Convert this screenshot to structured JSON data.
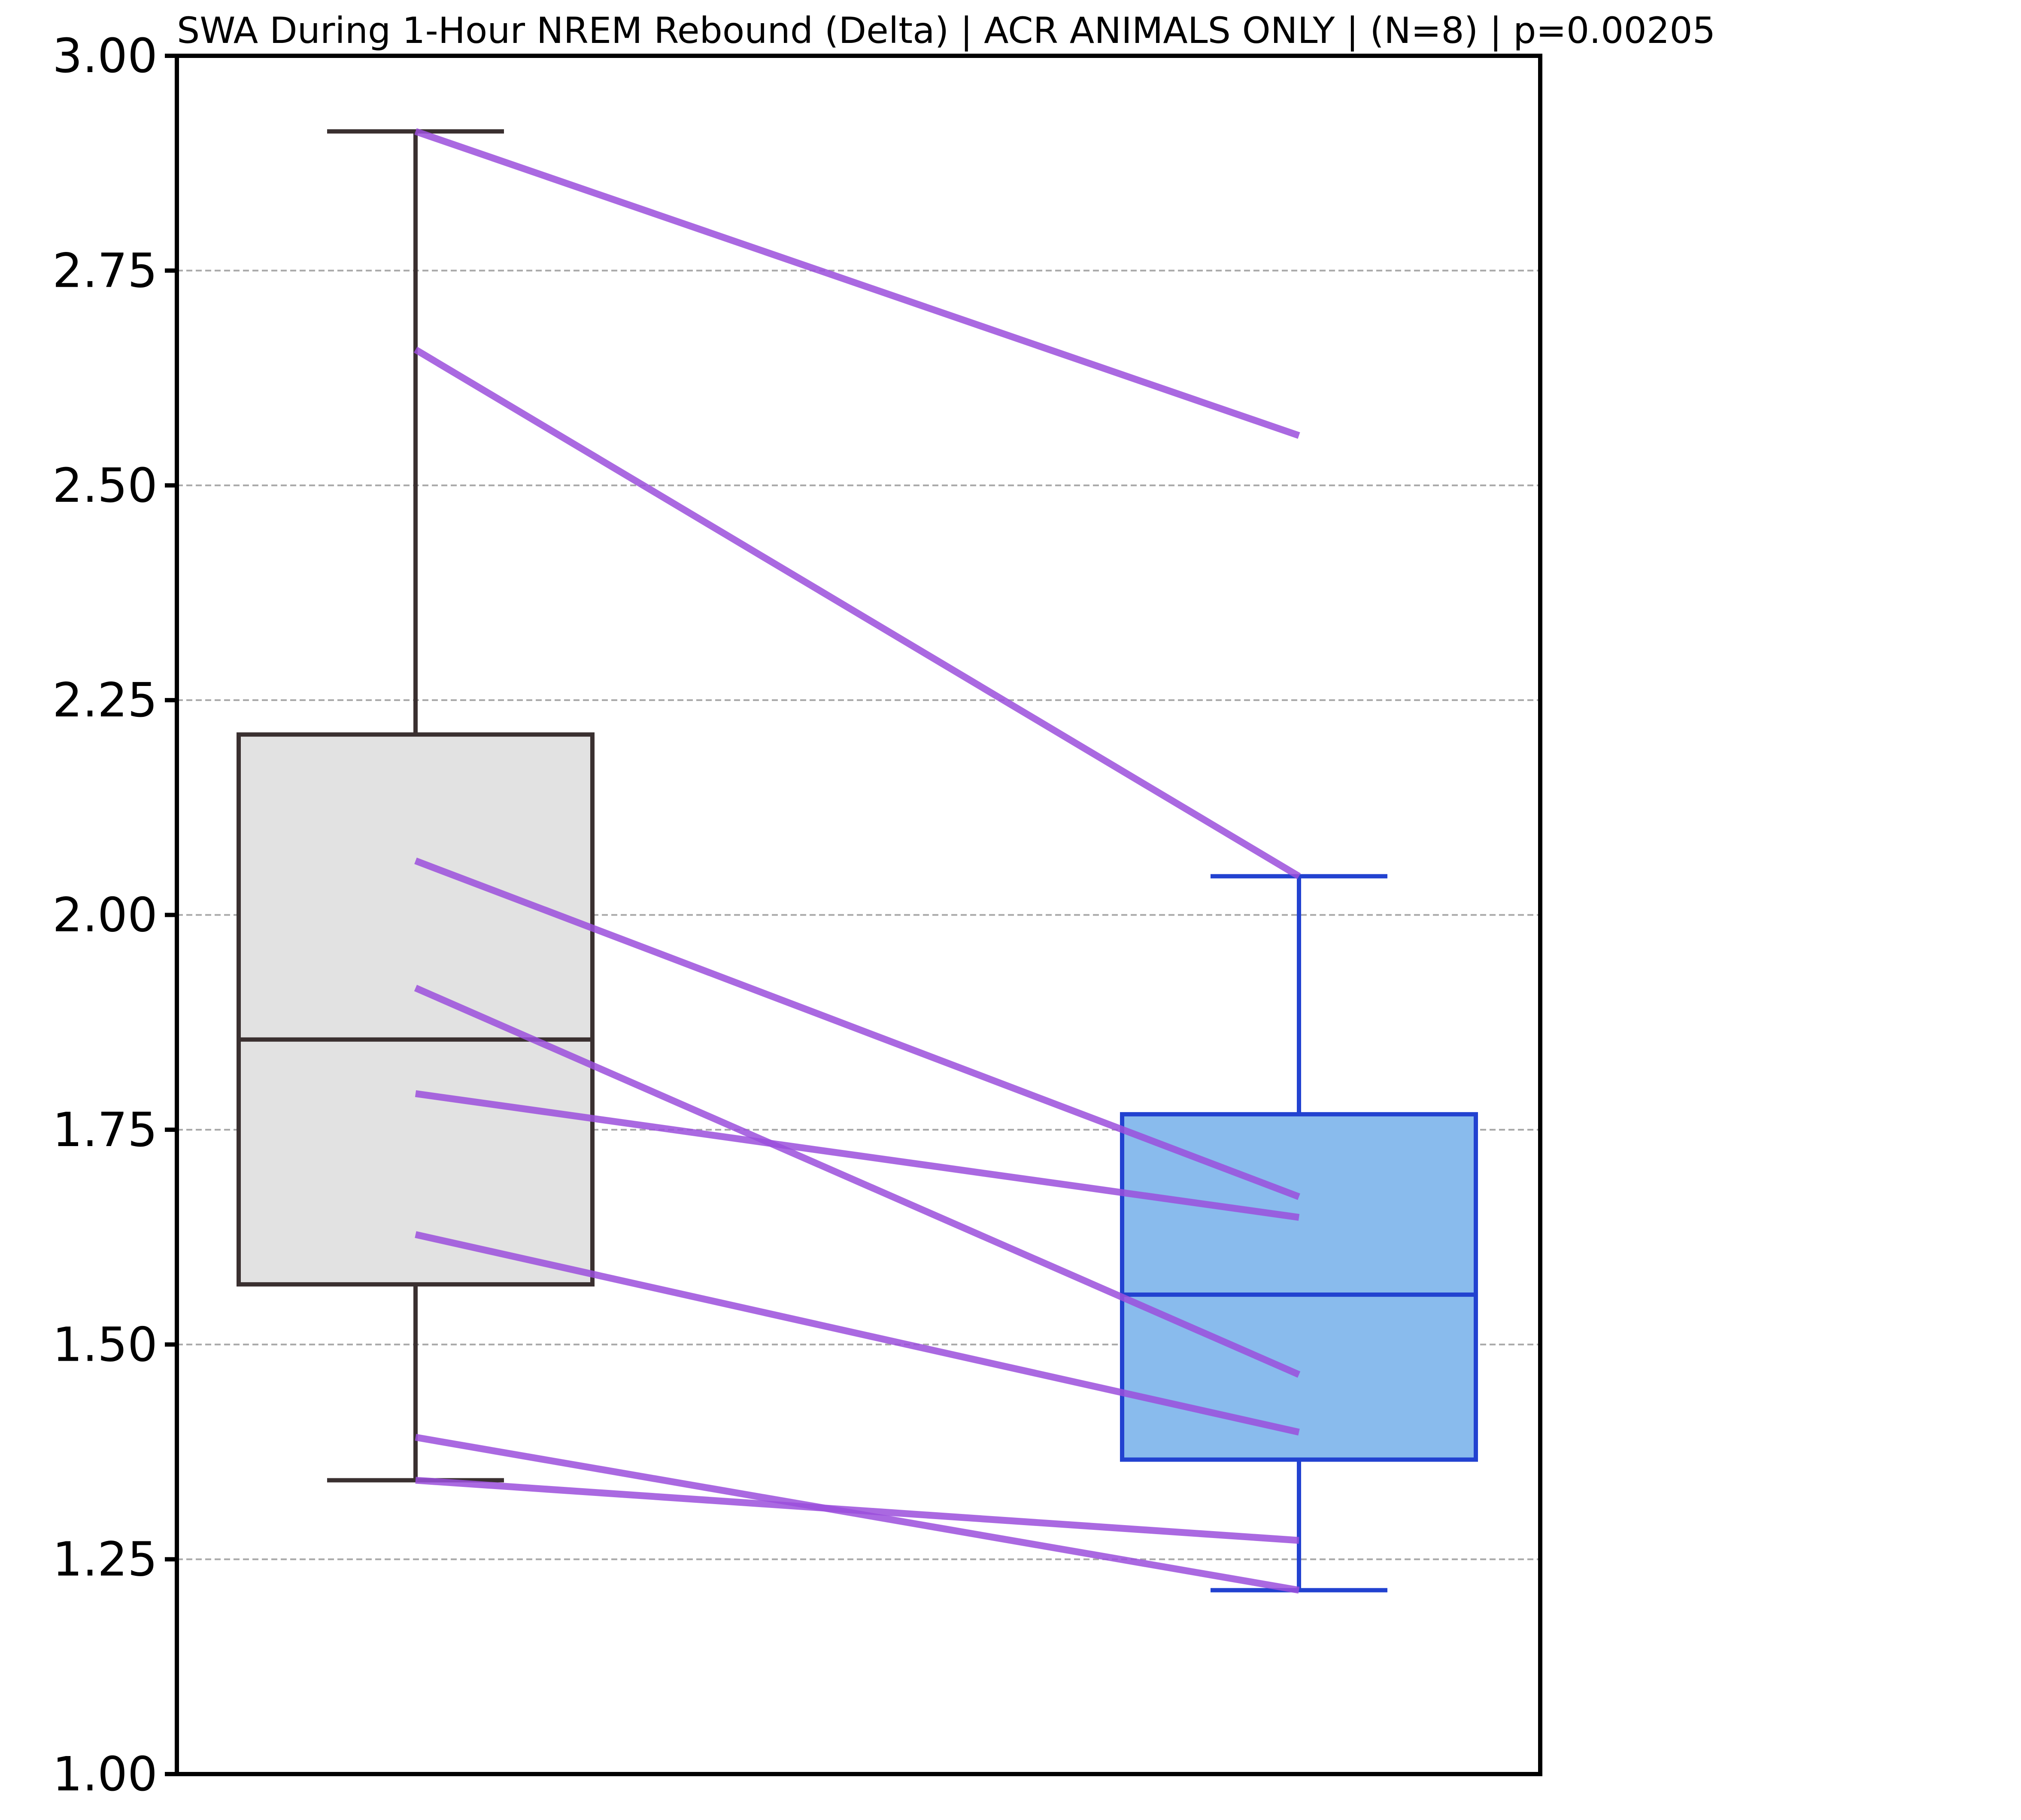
{
  "chart_data": {
    "type": "box",
    "title": "SWA During 1-Hour NREM Rebound (Delta) | ACR ANIMALS ONLY | (N=8) | p=0.00205",
    "xlabel": "",
    "ylabel": "",
    "ylim": [
      1.0,
      3.0
    ],
    "yticks": [
      1.0,
      1.25,
      1.5,
      1.75,
      2.0,
      2.25,
      2.5,
      2.75,
      3.0
    ],
    "ytick_labels": [
      "1.00",
      "1.25",
      "1.50",
      "1.75",
      "2.00",
      "2.25",
      "2.50",
      "2.75",
      "3.00"
    ],
    "grid": "horizontal dashed",
    "boxes": [
      {
        "q1": 1.57,
        "median": 1.855,
        "q3": 2.21,
        "whisker_low": 1.342,
        "whisker_high": 2.912,
        "fill": "#e2e2e2",
        "edge": "#3a3030"
      },
      {
        "q1": 1.366,
        "median": 1.558,
        "q3": 1.768,
        "whisker_low": 1.214,
        "whisker_high": 2.045,
        "fill": "#89bbed",
        "edge": "#2242d0"
      }
    ],
    "paired_lines": [
      {
        "left": 2.912,
        "right": 2.558
      },
      {
        "left": 2.658,
        "right": 2.045
      },
      {
        "left": 2.063,
        "right": 1.672
      },
      {
        "left": 1.915,
        "right": 1.465
      },
      {
        "left": 1.792,
        "right": 1.648
      },
      {
        "left": 1.628,
        "right": 1.398
      },
      {
        "left": 1.392,
        "right": 1.214
      },
      {
        "left": 1.342,
        "right": 1.272
      }
    ],
    "paired_line_color": "#9b4fdc"
  }
}
